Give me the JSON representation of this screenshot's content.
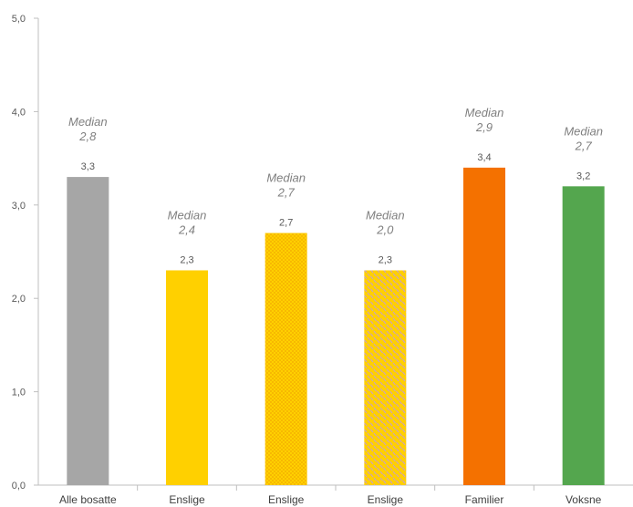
{
  "chart_data": {
    "type": "bar",
    "ylim": [
      0,
      5
    ],
    "yticks": [
      "0,0",
      "1,0",
      "2,0",
      "3,0",
      "4,0",
      "5,0"
    ],
    "grid": false,
    "categories": [
      "Alle bosatte",
      "Enslige",
      "Enslige",
      "Enslige",
      "Familier",
      "Voksne"
    ],
    "values": [
      3.3,
      2.3,
      2.7,
      2.3,
      3.4,
      3.2
    ],
    "value_labels": [
      "3,3",
      "2,3",
      "2,7",
      "2,3",
      "3,4",
      "3,2"
    ],
    "medians": [
      {
        "label": "Median",
        "value": "2,8"
      },
      {
        "label": "Median",
        "value": "2,4"
      },
      {
        "label": "Median",
        "value": "2,7"
      },
      {
        "label": "Median",
        "value": "2,0"
      },
      {
        "label": "Median",
        "value": "2,9"
      },
      {
        "label": "Median",
        "value": "2,7"
      }
    ],
    "bar_colors": [
      "#a6a6a6",
      "#ffd000",
      "#ffd000",
      "#ffd000",
      "#f47100",
      "#54a64e"
    ],
    "bar_patterns": [
      "solid",
      "solid",
      "dots",
      "dashes",
      "solid",
      "solid"
    ],
    "pattern_colors": [
      "",
      "",
      "#f2a900",
      "#c9a0c4",
      "",
      ""
    ]
  }
}
